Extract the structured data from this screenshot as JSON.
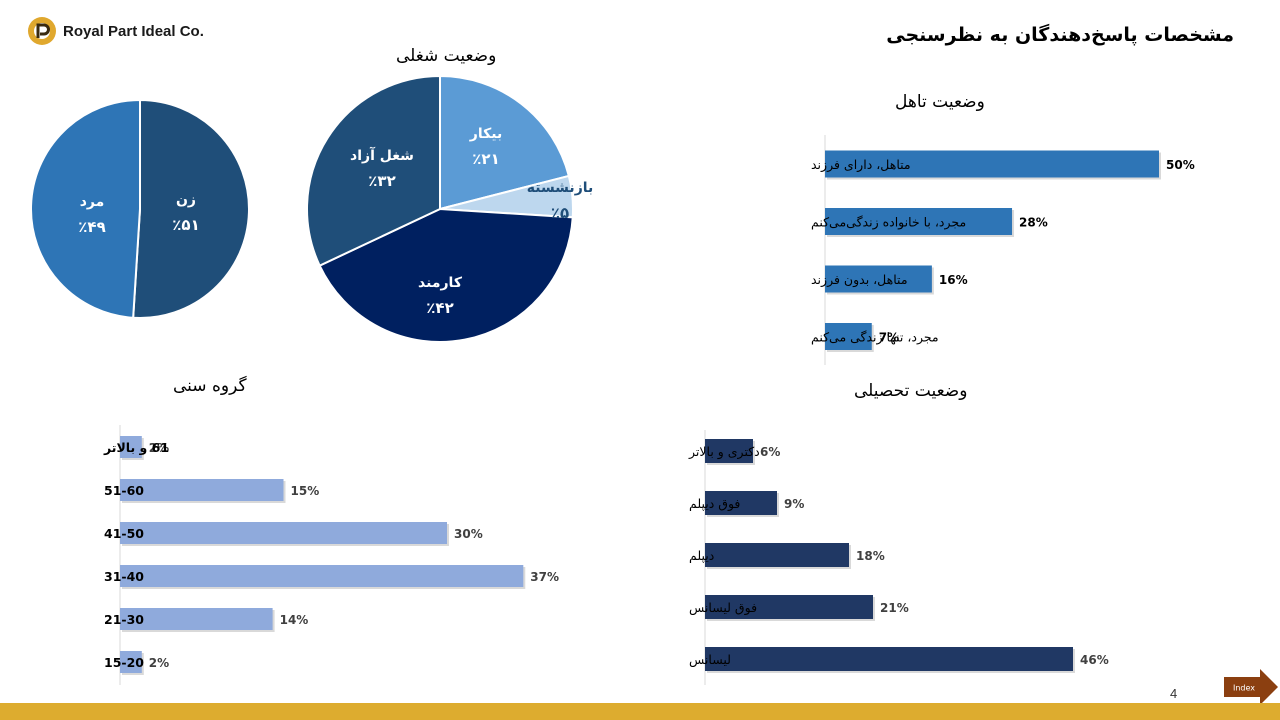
{
  "header": {
    "logo_text": "Royal Part Ideal Co.",
    "page_title": "مشخصات پاسخ‌دهندگان به نظرسنجی"
  },
  "footer": {
    "page_number": "4",
    "index_label": "Index",
    "bar_color": "#ddac2f",
    "index_color": "#8b3f10"
  },
  "chart_data": [
    {
      "id": "gender",
      "type": "pie",
      "title": "",
      "slices": [
        {
          "label": "زن",
          "value_text": "٪۵۱",
          "value": 51,
          "color": "#1f4e79"
        },
        {
          "label": "مرد",
          "value_text": "٪۴۹",
          "value": 49,
          "color": "#2e75b6"
        }
      ]
    },
    {
      "id": "employment",
      "type": "pie",
      "title": "وضعیت شغلی",
      "slices": [
        {
          "label": "بیکار",
          "value_text": "٪۲۱",
          "value": 21,
          "color": "#5b9bd5"
        },
        {
          "label": "بازنشسته",
          "value_text": "٪۵",
          "value": 5,
          "color": "#bdd7ee"
        },
        {
          "label": "کارمند",
          "value_text": "٪۴۲",
          "value": 42,
          "color": "#002060"
        },
        {
          "label": "شغل آزاد",
          "value_text": "٪۳۲",
          "value": 32,
          "color": "#1f4e79"
        }
      ]
    },
    {
      "id": "marital",
      "type": "bar",
      "orientation": "horizontal",
      "title": "وضعیت تاهل",
      "color": "#2e75b6",
      "categories": [
        "متاهل، دارای فرزند",
        "مجرد، با خانواده زندگی‌می‌کنم",
        "متاهل، بدون فرزند",
        "مجرد، تنها زندگی می‌کنم"
      ],
      "values": [
        50,
        28,
        16,
        7
      ],
      "labels": [
        "50%",
        "28%",
        "16%",
        "7%"
      ]
    },
    {
      "id": "age",
      "type": "bar",
      "orientation": "horizontal",
      "title": "گروه سنی",
      "color": "#8faadc",
      "categories": [
        "61 و بالاتر",
        "51-60",
        "41-50",
        "31-40",
        "21-30",
        "15-20"
      ],
      "values": [
        2,
        15,
        30,
        37,
        14,
        2
      ],
      "labels": [
        "2%",
        "15%",
        "30%",
        "37%",
        "14%",
        "2%"
      ]
    },
    {
      "id": "education",
      "type": "bar",
      "orientation": "horizontal",
      "title": "وضعیت تحصیلی",
      "color": "#203864",
      "categories": [
        "دکتری و بالاتر",
        "فوق دیپلم",
        "دیپلم",
        "فوق لیسانس",
        "لیسانس"
      ],
      "values": [
        6,
        9,
        18,
        21,
        46
      ],
      "labels": [
        "6%",
        "9%",
        "18%",
        "21%",
        "46%"
      ]
    }
  ]
}
